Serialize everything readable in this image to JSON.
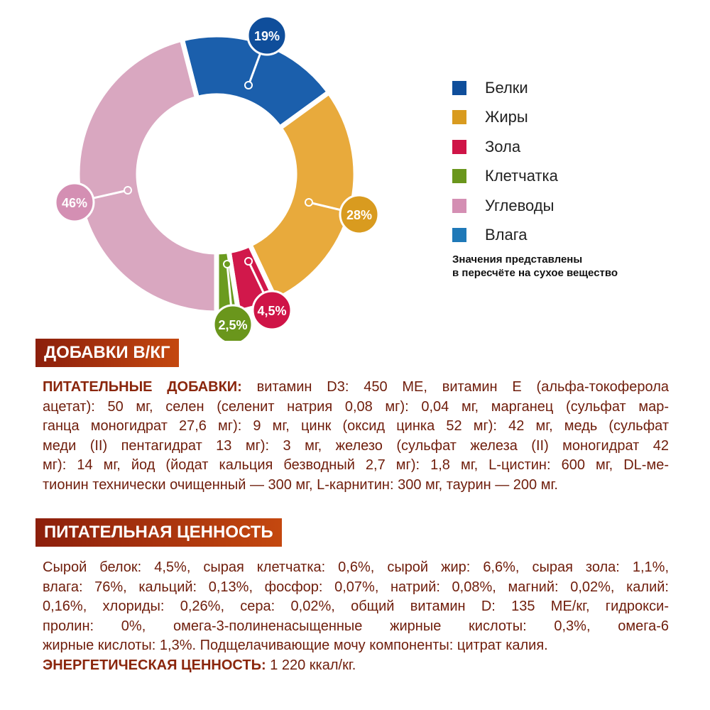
{
  "chart_data": {
    "type": "donut",
    "categories": [
      "Белки",
      "Жиры",
      "Зола",
      "Клетчатка",
      "Углеводы",
      "Влага"
    ],
    "values": [
      19,
      28,
      4.5,
      2.5,
      46,
      null
    ],
    "value_labels": [
      "19%",
      "28%",
      "4,5%",
      "2,5%",
      "46%",
      null
    ],
    "colors": [
      "#1b5fac",
      "#e8aa3c",
      "#d1184b",
      "#6b9b1f",
      "#d9a7c0",
      "#1f79b8"
    ],
    "legend_colors": [
      "#0f4e9b",
      "#d99b1f",
      "#cf1447",
      "#6a961c",
      "#d48fb3",
      "#1f79b8"
    ],
    "note": [
      "Значения представлены",
      "в пересчёте на сухое вещество"
    ]
  },
  "supplements": {
    "heading": "ДОБАВКИ В/КГ",
    "lead": "ПИТАТЕЛЬНЫЕ ДОБАВКИ:",
    "lines": [
      "витамин D3: 450 МЕ, витамин Е (альфа-токоферола",
      "ацетат): 50 мг, селен (селенит натрия 0,08 мг): 0,04 мг, марганец (сульфат мар-",
      "ганца моногидрат 27,6 мг): 9 мг, цинк (оксид цинка 52 мг): 42 мг, медь (сульфат",
      "меди (II) пентагидрат 13 мг): 3 мг, железо (сульфат железа (II) моногидрат 42",
      "мг): 14 мг, йод (йодат кальция безводный 2,7 мг): 1,8 мг, L-цистин: 600 мг, DL-ме-",
      "тионин технически очищенный — 300 мг, L-карнитин: 300 мг, таурин — 200 мг."
    ]
  },
  "nutrition": {
    "heading": "ПИТАТЕЛЬНАЯ ЦЕННОСТЬ",
    "lines": [
      "Сырой белок: 4,5%, сырая клетчатка: 0,6%, сырой жир: 6,6%, сырая зола: 1,1%,",
      "влага: 76%, кальций: 0,13%, фосфор: 0,07%, натрий: 0,08%, магний: 0,02%, калий:",
      "0,16%, хлориды: 0,26%, сера: 0,02%, общий витамин D: 135 МЕ/кг, гидрокси-",
      "пролин: 0%, омега-3-полиненасыщенные жирные кислоты: 0,3%, омега-6",
      "жирные кислоты: 1,3%. Подщелачивающие мочу компоненты: цитрат калия."
    ],
    "energy_lead": "ЭНЕРГЕТИЧЕСКАЯ ЦЕННОСТЬ:",
    "energy_value": "1 220 ккал/кг."
  }
}
